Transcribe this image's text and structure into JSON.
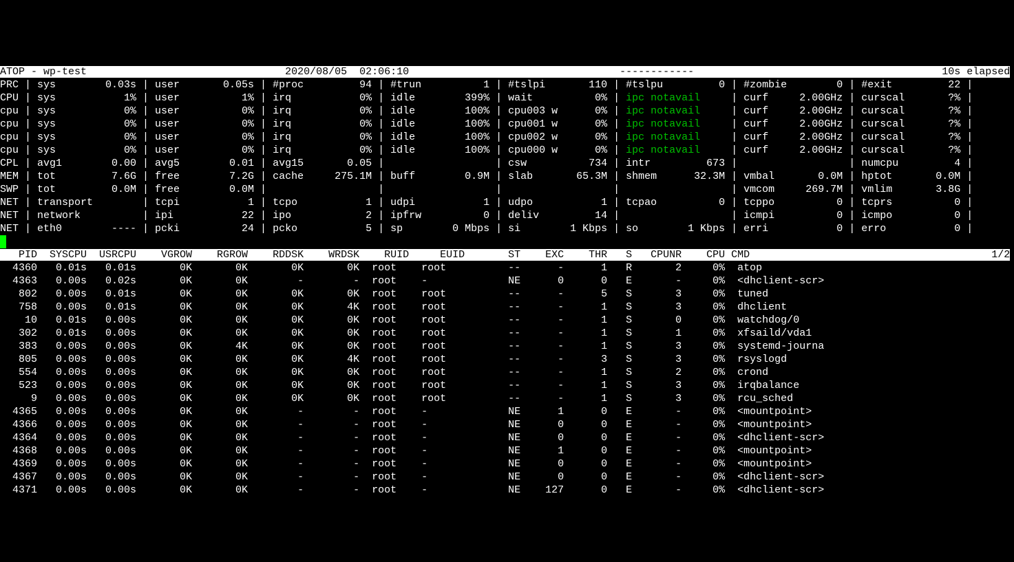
{
  "cols": 163,
  "header": {
    "left": "ATOP - wp-test",
    "date": "2020/08/05",
    "time": "02:06:10",
    "dashes": "------------",
    "right": "10s elapsed"
  },
  "stat_rows": [
    {
      "tag": "PRC",
      "cells": [
        [
          "sys",
          "0.03s"
        ],
        [
          "user",
          "0.05s"
        ],
        [
          "#proc",
          "94"
        ],
        [
          "#trun",
          "1"
        ],
        [
          "#tslpi",
          "110"
        ],
        [
          "#tslpu",
          "0"
        ],
        [
          "#zombie",
          "0"
        ],
        [
          "#exit",
          "22"
        ]
      ]
    },
    {
      "tag": "CPU",
      "cells": [
        [
          "sys",
          "1%"
        ],
        [
          "user",
          "1%"
        ],
        [
          "irq",
          "0%"
        ],
        [
          "idle",
          "399%"
        ],
        [
          "wait",
          "0%"
        ],
        [
          "$G",
          "ipc notavail"
        ],
        [
          "curf",
          "2.00GHz"
        ],
        [
          "curscal",
          "?%"
        ]
      ]
    },
    {
      "tag": "cpu",
      "cells": [
        [
          "sys",
          "0%"
        ],
        [
          "user",
          "0%"
        ],
        [
          "irq",
          "0%"
        ],
        [
          "idle",
          "100%"
        ],
        [
          "cpu003 w",
          "0%"
        ],
        [
          "$G",
          "ipc notavail"
        ],
        [
          "curf",
          "2.00GHz"
        ],
        [
          "curscal",
          "?%"
        ]
      ]
    },
    {
      "tag": "cpu",
      "cells": [
        [
          "sys",
          "0%"
        ],
        [
          "user",
          "0%"
        ],
        [
          "irq",
          "0%"
        ],
        [
          "idle",
          "100%"
        ],
        [
          "cpu001 w",
          "0%"
        ],
        [
          "$G",
          "ipc notavail"
        ],
        [
          "curf",
          "2.00GHz"
        ],
        [
          "curscal",
          "?%"
        ]
      ]
    },
    {
      "tag": "cpu",
      "cells": [
        [
          "sys",
          "0%"
        ],
        [
          "user",
          "0%"
        ],
        [
          "irq",
          "0%"
        ],
        [
          "idle",
          "100%"
        ],
        [
          "cpu002 w",
          "0%"
        ],
        [
          "$G",
          "ipc notavail"
        ],
        [
          "curf",
          "2.00GHz"
        ],
        [
          "curscal",
          "?%"
        ]
      ]
    },
    {
      "tag": "cpu",
      "cells": [
        [
          "sys",
          "0%"
        ],
        [
          "user",
          "0%"
        ],
        [
          "irq",
          "0%"
        ],
        [
          "idle",
          "100%"
        ],
        [
          "cpu000 w",
          "0%"
        ],
        [
          "$G",
          "ipc notavail"
        ],
        [
          "curf",
          "2.00GHz"
        ],
        [
          "curscal",
          "?%"
        ]
      ]
    },
    {
      "tag": "CPL",
      "cells": [
        [
          "avg1",
          "0.00"
        ],
        [
          "avg5",
          "0.01"
        ],
        [
          "avg15",
          "0.05"
        ],
        [
          "",
          ""
        ],
        [
          "csw",
          "734"
        ],
        [
          "intr",
          "673"
        ],
        [
          "",
          ""
        ],
        [
          "numcpu",
          "4"
        ]
      ]
    },
    {
      "tag": "MEM",
      "cells": [
        [
          "tot",
          "7.6G"
        ],
        [
          "free",
          "7.2G"
        ],
        [
          "cache",
          "275.1M"
        ],
        [
          "buff",
          "0.9M"
        ],
        [
          "slab",
          "65.3M"
        ],
        [
          "shmem",
          "32.3M"
        ],
        [
          "vmbal",
          "0.0M"
        ],
        [
          "hptot",
          "0.0M"
        ]
      ]
    },
    {
      "tag": "SWP",
      "cells": [
        [
          "tot",
          "0.0M"
        ],
        [
          "free",
          "0.0M"
        ],
        [
          "",
          ""
        ],
        [
          "",
          ""
        ],
        [
          "",
          ""
        ],
        [
          "",
          ""
        ],
        [
          "vmcom",
          "269.7M"
        ],
        [
          "vmlim",
          "3.8G"
        ]
      ]
    },
    {
      "tag": "NET",
      "cells": [
        [
          "transport",
          ""
        ],
        [
          "tcpi",
          "1"
        ],
        [
          "tcpo",
          "1"
        ],
        [
          "udpi",
          "1"
        ],
        [
          "udpo",
          "1"
        ],
        [
          "tcpao",
          "0"
        ],
        [
          "tcppo",
          "0"
        ],
        [
          "tcprs",
          "0"
        ]
      ]
    },
    {
      "tag": "NET",
      "cells": [
        [
          "network",
          ""
        ],
        [
          "ipi",
          "22"
        ],
        [
          "ipo",
          "2"
        ],
        [
          "ipfrw",
          "0"
        ],
        [
          "deliv",
          "14"
        ],
        [
          "",
          ""
        ],
        [
          "icmpi",
          "0"
        ],
        [
          "icmpo",
          "0"
        ]
      ]
    },
    {
      "tag": "NET",
      "cells": [
        [
          "eth0",
          "----"
        ],
        [
          "pcki",
          "24"
        ],
        [
          "pcko",
          "5"
        ],
        [
          "sp",
          "0 Mbps"
        ],
        [
          "si",
          "1 Kbps"
        ],
        [
          "so",
          "1 Kbps"
        ],
        [
          "erri",
          "0"
        ],
        [
          "erro",
          "0"
        ]
      ]
    }
  ],
  "proc_header": {
    "cols": [
      "PID",
      "SYSCPU",
      "USRCPU",
      "VGROW",
      "RGROW",
      "RDDSK",
      "WRDSK",
      "RUID",
      "EUID",
      "ST",
      "EXC",
      "THR",
      "S",
      "CPUNR",
      "CPU",
      "CMD"
    ],
    "page": "1/2"
  },
  "proc_rows": [
    [
      "4360",
      "0.01s",
      "0.01s",
      "0K",
      "0K",
      "0K",
      "0K",
      "root",
      "root",
      "--",
      "-",
      "1",
      "R",
      "2",
      "0%",
      "atop"
    ],
    [
      "4363",
      "0.00s",
      "0.02s",
      "0K",
      "0K",
      "-",
      "-",
      "root",
      "-",
      "NE",
      "0",
      "0",
      "E",
      "-",
      "0%",
      "<dhclient-scr>"
    ],
    [
      "802",
      "0.00s",
      "0.01s",
      "0K",
      "0K",
      "0K",
      "0K",
      "root",
      "root",
      "--",
      "-",
      "5",
      "S",
      "3",
      "0%",
      "tuned"
    ],
    [
      "758",
      "0.00s",
      "0.01s",
      "0K",
      "0K",
      "0K",
      "4K",
      "root",
      "root",
      "--",
      "-",
      "1",
      "S",
      "3",
      "0%",
      "dhclient"
    ],
    [
      "10",
      "0.01s",
      "0.00s",
      "0K",
      "0K",
      "0K",
      "0K",
      "root",
      "root",
      "--",
      "-",
      "1",
      "S",
      "0",
      "0%",
      "watchdog/0"
    ],
    [
      "302",
      "0.01s",
      "0.00s",
      "0K",
      "0K",
      "0K",
      "0K",
      "root",
      "root",
      "--",
      "-",
      "1",
      "S",
      "1",
      "0%",
      "xfsaild/vda1"
    ],
    [
      "383",
      "0.00s",
      "0.00s",
      "0K",
      "4K",
      "0K",
      "0K",
      "root",
      "root",
      "--",
      "-",
      "1",
      "S",
      "3",
      "0%",
      "systemd-journa"
    ],
    [
      "805",
      "0.00s",
      "0.00s",
      "0K",
      "0K",
      "0K",
      "4K",
      "root",
      "root",
      "--",
      "-",
      "3",
      "S",
      "3",
      "0%",
      "rsyslogd"
    ],
    [
      "554",
      "0.00s",
      "0.00s",
      "0K",
      "0K",
      "0K",
      "0K",
      "root",
      "root",
      "--",
      "-",
      "1",
      "S",
      "2",
      "0%",
      "crond"
    ],
    [
      "523",
      "0.00s",
      "0.00s",
      "0K",
      "0K",
      "0K",
      "0K",
      "root",
      "root",
      "--",
      "-",
      "1",
      "S",
      "3",
      "0%",
      "irqbalance"
    ],
    [
      "9",
      "0.00s",
      "0.00s",
      "0K",
      "0K",
      "0K",
      "0K",
      "root",
      "root",
      "--",
      "-",
      "1",
      "S",
      "3",
      "0%",
      "rcu_sched"
    ],
    [
      "4365",
      "0.00s",
      "0.00s",
      "0K",
      "0K",
      "-",
      "-",
      "root",
      "-",
      "NE",
      "1",
      "0",
      "E",
      "-",
      "0%",
      "<mountpoint>"
    ],
    [
      "4366",
      "0.00s",
      "0.00s",
      "0K",
      "0K",
      "-",
      "-",
      "root",
      "-",
      "NE",
      "0",
      "0",
      "E",
      "-",
      "0%",
      "<mountpoint>"
    ],
    [
      "4364",
      "0.00s",
      "0.00s",
      "0K",
      "0K",
      "-",
      "-",
      "root",
      "-",
      "NE",
      "0",
      "0",
      "E",
      "-",
      "0%",
      "<dhclient-scr>"
    ],
    [
      "4368",
      "0.00s",
      "0.00s",
      "0K",
      "0K",
      "-",
      "-",
      "root",
      "-",
      "NE",
      "1",
      "0",
      "E",
      "-",
      "0%",
      "<mountpoint>"
    ],
    [
      "4369",
      "0.00s",
      "0.00s",
      "0K",
      "0K",
      "-",
      "-",
      "root",
      "-",
      "NE",
      "0",
      "0",
      "E",
      "-",
      "0%",
      "<mountpoint>"
    ],
    [
      "4367",
      "0.00s",
      "0.00s",
      "0K",
      "0K",
      "-",
      "-",
      "root",
      "-",
      "NE",
      "0",
      "0",
      "E",
      "-",
      "0%",
      "<dhclient-scr>"
    ],
    [
      "4371",
      "0.00s",
      "0.00s",
      "0K",
      "0K",
      "-",
      "-",
      "root",
      "-",
      "NE",
      "127",
      "0",
      "E",
      "-",
      "0%",
      "<dhclient-scr>"
    ]
  ],
  "widths": {
    "tag": 4,
    "cell_label": 9,
    "cell_value": 8,
    "proc": [
      6,
      8,
      8,
      9,
      9,
      9,
      9,
      8,
      9,
      9,
      7,
      7,
      4,
      8,
      7,
      18
    ]
  }
}
